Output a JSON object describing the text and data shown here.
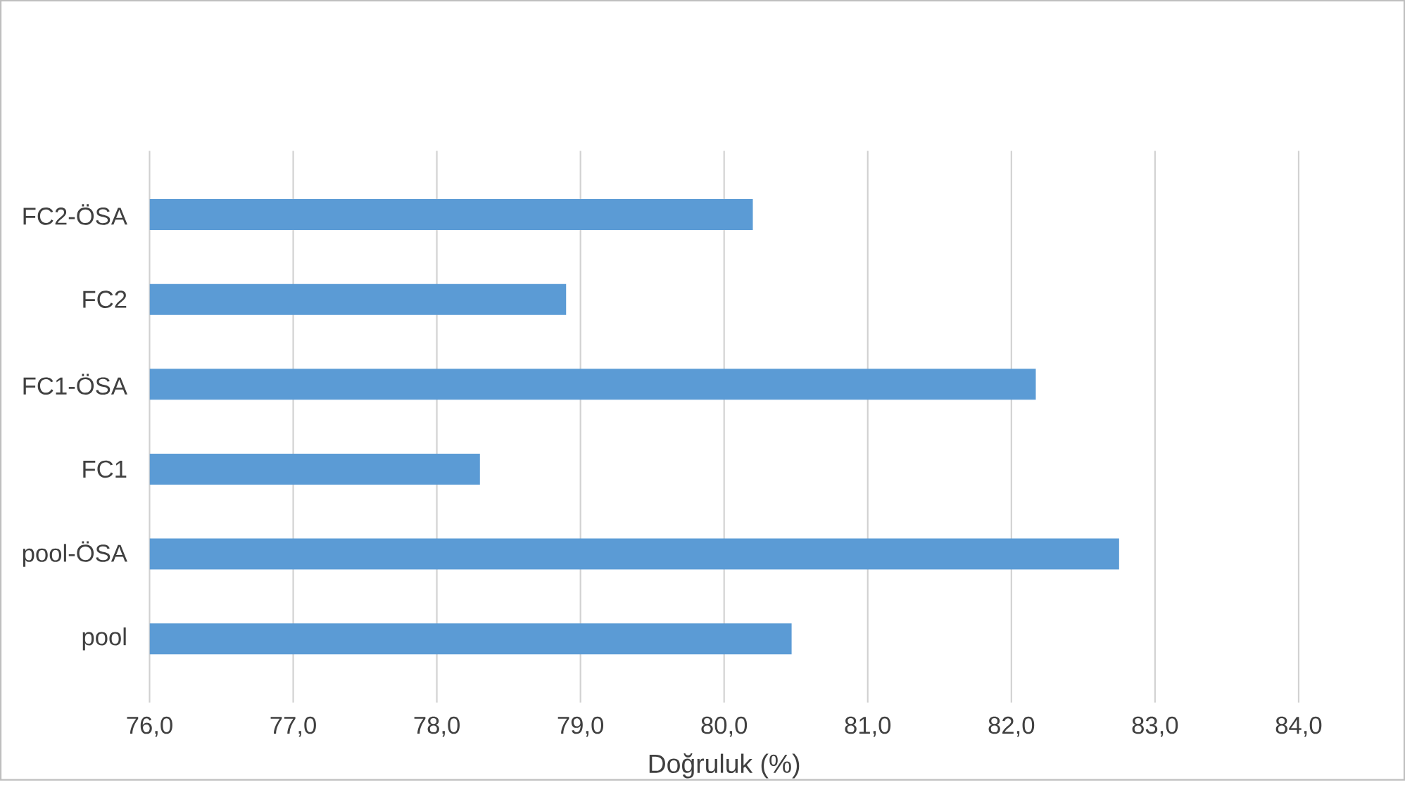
{
  "chart_data": {
    "type": "bar",
    "orientation": "horizontal",
    "xlabel": "Doğruluk (%)",
    "categories": [
      "FC2-ÖSA",
      "FC2",
      "FC1-ÖSA",
      "FC1",
      "pool-ÖSA",
      "pool"
    ],
    "values": [
      80.2,
      78.9,
      82.17,
      78.3,
      82.75,
      80.47
    ],
    "color": "#5b9bd5",
    "xlim": [
      76,
      84
    ],
    "xticks": [
      {
        "value": 76,
        "label": "76,0"
      },
      {
        "value": 77,
        "label": "77,0"
      },
      {
        "value": 78,
        "label": "78,0"
      },
      {
        "value": 79,
        "label": "79,0"
      },
      {
        "value": 80,
        "label": "80,0"
      },
      {
        "value": 81,
        "label": "81,0"
      },
      {
        "value": 82,
        "label": "82,0"
      },
      {
        "value": 83,
        "label": "83,0"
      },
      {
        "value": 84,
        "label": "84,0"
      }
    ],
    "grid": "x"
  }
}
